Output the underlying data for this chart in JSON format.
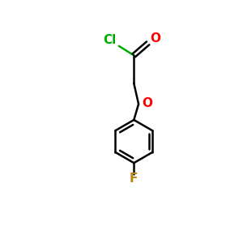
{
  "background_color": "#ffffff",
  "bond_color": "#000000",
  "cl_color": "#00aa00",
  "o_color": "#ff0000",
  "f_color": "#b8860b",
  "cl_label": "Cl",
  "o_label": "O",
  "f_label": "F",
  "o_carbonyl_label": "O",
  "figsize": [
    3.0,
    3.0
  ],
  "dpi": 100,
  "lw": 1.8,
  "font_size": 11
}
